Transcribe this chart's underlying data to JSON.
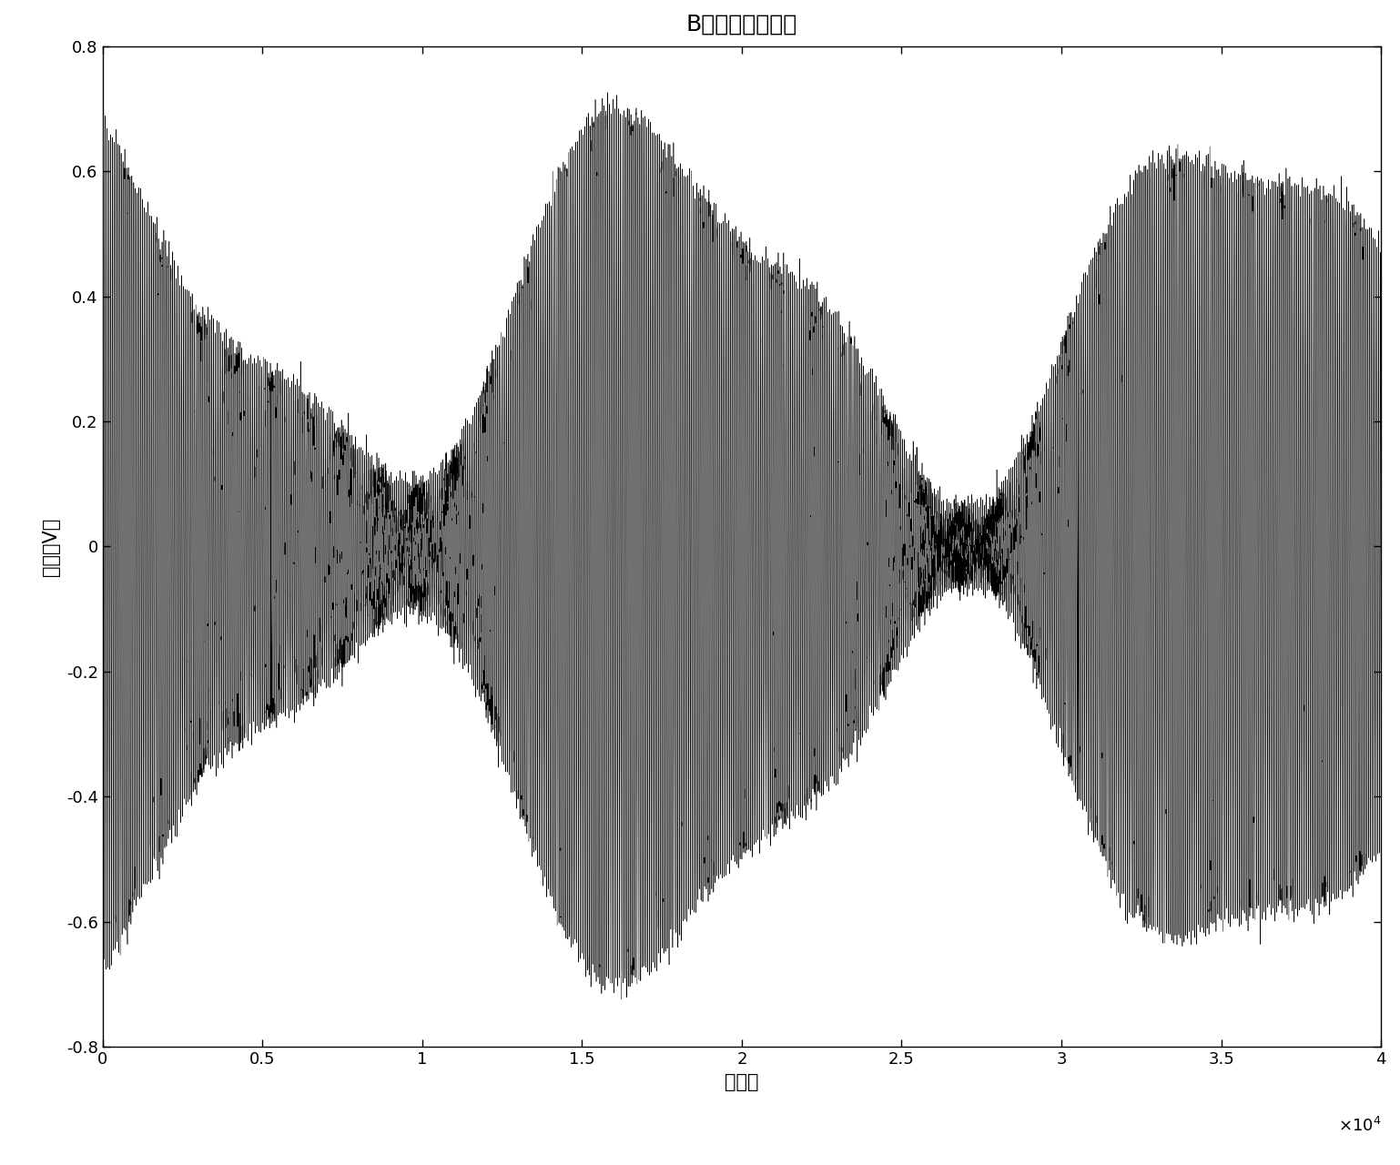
{
  "title": "B水听器接收信号",
  "xlabel": "采样点",
  "ylabel": "幅度（V）",
  "xlim": [
    0,
    40000
  ],
  "ylim": [
    -0.8,
    0.8
  ],
  "xticks": [
    0,
    5000,
    10000,
    15000,
    20000,
    25000,
    30000,
    35000,
    40000
  ],
  "xtick_labels": [
    "0",
    "0.5",
    "1",
    "1.5",
    "2",
    "2.5",
    "3",
    "3.5",
    "4"
  ],
  "yticks": [
    -0.8,
    -0.6,
    -0.4,
    -0.2,
    0,
    0.2,
    0.4,
    0.6,
    0.8
  ],
  "n_samples": 40000,
  "carrier_freq": 0.018,
  "am_freq1": 5.5e-05,
  "am_freq2": 0.00012,
  "signal_color": "#000000",
  "line_width": 0.4,
  "title_fontsize": 18,
  "label_fontsize": 15,
  "tick_fontsize": 13
}
